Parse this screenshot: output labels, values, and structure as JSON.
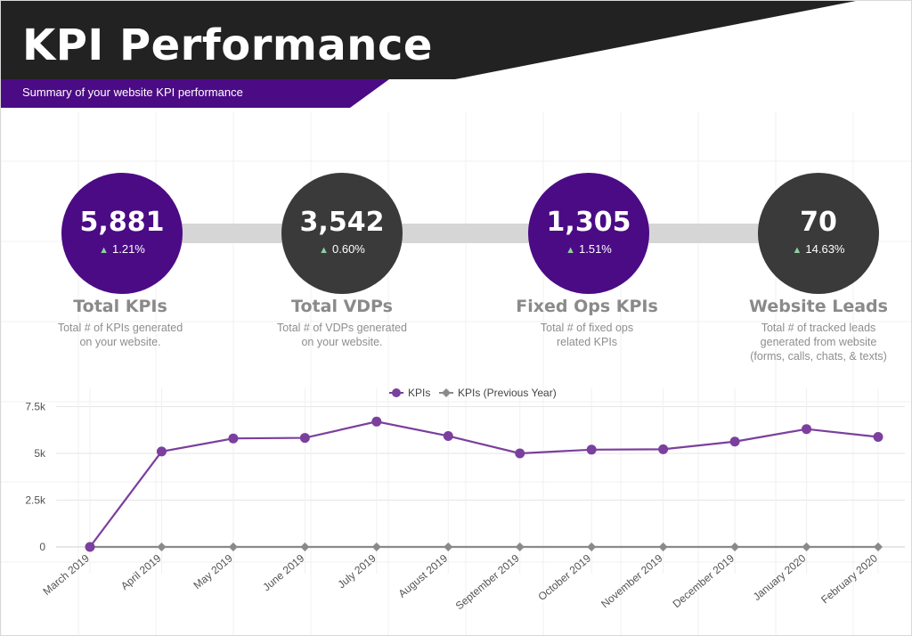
{
  "header": {
    "title": "KPI Performance",
    "subtitle": "Summary of your website KPI performance",
    "colors": {
      "dark_band": "#222222",
      "accent": "#4b0b85"
    }
  },
  "kpis": [
    {
      "id": "total-kpis",
      "value": "5,881",
      "change": "1.21%",
      "direction": "up",
      "title": "Total KPIs",
      "desc": [
        "Total # of KPIs generated",
        "on your website."
      ],
      "color": "#4b0b85"
    },
    {
      "id": "total-vdps",
      "value": "3,542",
      "change": "0.60%",
      "direction": "up",
      "title": "Total VDPs",
      "desc": [
        "Total # of VDPs generated",
        "on your website."
      ],
      "color": "#3a3a3a"
    },
    {
      "id": "fixed-ops-kpis",
      "value": "1,305",
      "change": "1.51%",
      "direction": "up",
      "title": "Fixed Ops KPIs",
      "desc": [
        "Total # of fixed ops",
        "related KPIs"
      ],
      "color": "#4b0b85"
    },
    {
      "id": "website-leads",
      "value": "70",
      "change": "14.63%",
      "direction": "up",
      "title": "Website Leads",
      "desc": [
        "Total # of tracked leads",
        "generated from website",
        "(forms, calls, chats, & texts)"
      ],
      "color": "#3a3a3a"
    }
  ],
  "chart_data": {
    "type": "line",
    "categories": [
      "March 2019",
      "April 2019",
      "May 2019",
      "June 2019",
      "July 2019",
      "August 2019",
      "September 2019",
      "October 2019",
      "November 2019",
      "December 2019",
      "January 2020",
      "February 2020"
    ],
    "series": [
      {
        "name": "KPIs",
        "color": "#7b3f9e",
        "marker": "circle",
        "values": [
          0,
          5100,
          5800,
          5830,
          6700,
          5930,
          5000,
          5200,
          5220,
          5630,
          6300,
          5881
        ]
      },
      {
        "name": "KPIs (Previous Year)",
        "color": "#8a8a8a",
        "marker": "diamond",
        "values": [
          0,
          0,
          0,
          0,
          0,
          0,
          0,
          0,
          0,
          0,
          0,
          0
        ]
      }
    ],
    "yticks": [
      {
        "value": 0,
        "label": "0"
      },
      {
        "value": 2500,
        "label": "2.5k"
      },
      {
        "value": 5000,
        "label": "5k"
      },
      {
        "value": 7500,
        "label": "7.5k"
      }
    ],
    "ylim": [
      0,
      8000
    ],
    "grid": true,
    "legend_position": "top-center",
    "xlabel": "",
    "ylabel": ""
  }
}
